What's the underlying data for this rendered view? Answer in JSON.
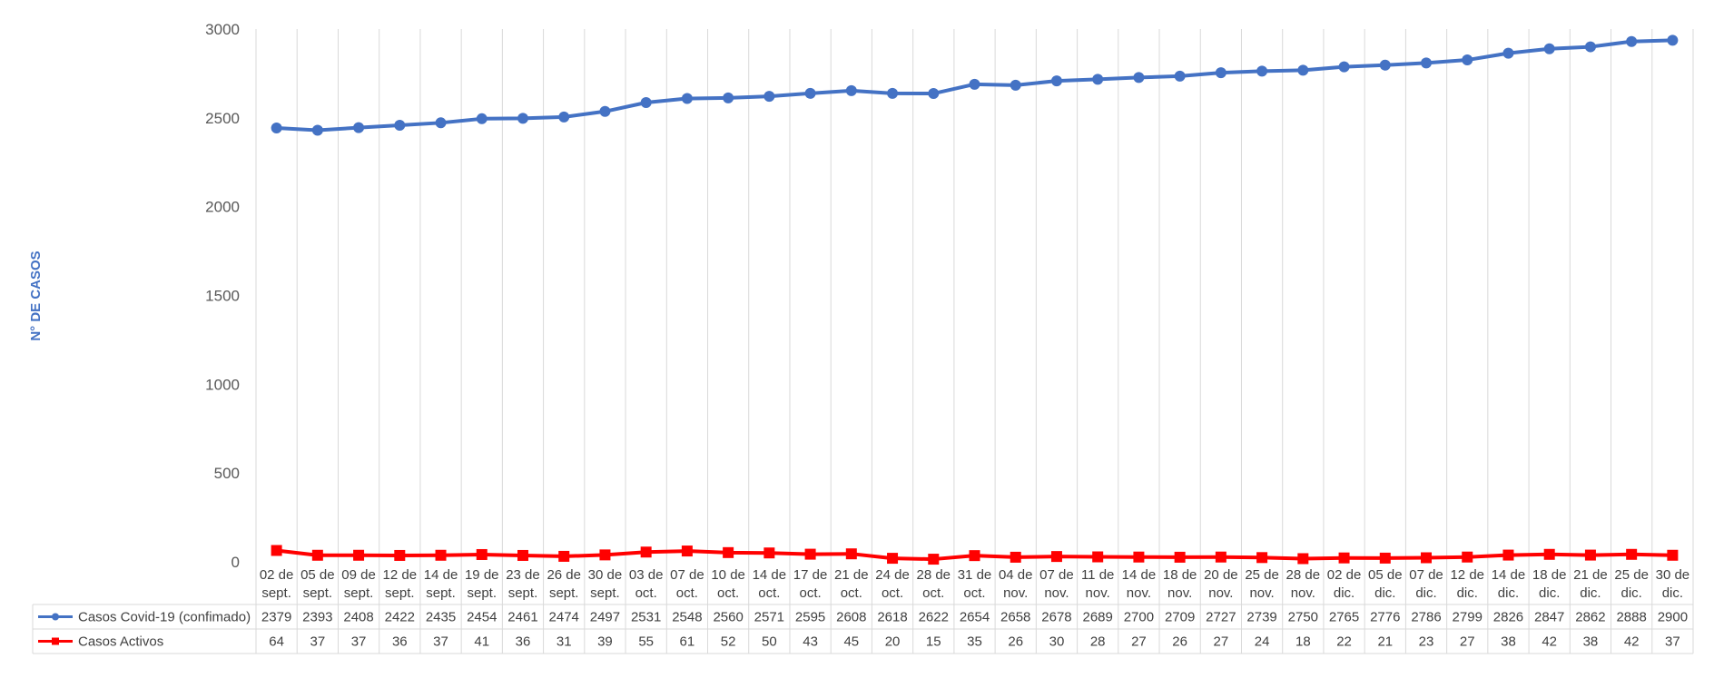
{
  "chart_data": {
    "type": "line",
    "title": "",
    "xlabel": "",
    "ylabel": "N° DE CASOS",
    "ylim": [
      0,
      3000
    ],
    "yticks": [
      0,
      500,
      1000,
      1500,
      2000,
      2500,
      3000
    ],
    "grid": "vertical",
    "legend": "data-table-left",
    "categories": [
      [
        "02 de",
        "sept."
      ],
      [
        "05 de",
        "sept."
      ],
      [
        "09 de",
        "sept."
      ],
      [
        "12 de",
        "sept."
      ],
      [
        "14 de",
        "sept."
      ],
      [
        "19 de",
        "sept."
      ],
      [
        "23 de",
        "sept."
      ],
      [
        "26 de",
        "sept."
      ],
      [
        "30 de",
        "sept."
      ],
      [
        "03 de",
        "oct."
      ],
      [
        "07 de",
        "oct."
      ],
      [
        "10 de",
        "oct."
      ],
      [
        "14 de",
        "oct."
      ],
      [
        "17 de",
        "oct."
      ],
      [
        "21 de",
        "oct."
      ],
      [
        "24 de",
        "oct."
      ],
      [
        "28 de",
        "oct."
      ],
      [
        "31 de",
        "oct."
      ],
      [
        "04 de",
        "nov."
      ],
      [
        "07 de",
        "nov."
      ],
      [
        "11 de",
        "nov."
      ],
      [
        "14 de",
        "nov."
      ],
      [
        "18 de",
        "nov."
      ],
      [
        "20 de",
        "nov."
      ],
      [
        "25 de",
        "nov."
      ],
      [
        "28 de",
        "nov."
      ],
      [
        "02 de",
        "dic."
      ],
      [
        "05 de",
        "dic."
      ],
      [
        "07 de",
        "dic."
      ],
      [
        "12 de",
        "dic."
      ],
      [
        "14 de",
        "dic."
      ],
      [
        "18 de",
        "dic."
      ],
      [
        "21 de",
        "dic."
      ],
      [
        "25 de",
        "dic."
      ],
      [
        "30 de",
        "dic."
      ]
    ],
    "series": [
      {
        "name": "Casos Covid-19 (confimado)",
        "color": "#4472C4",
        "marker": "circle",
        "values": [
          2379,
          2393,
          2408,
          2422,
          2435,
          2454,
          2461,
          2474,
          2497,
          2531,
          2548,
          2560,
          2571,
          2595,
          2608,
          2618,
          2622,
          2654,
          2658,
          2678,
          2689,
          2700,
          2709,
          2727,
          2739,
          2750,
          2765,
          2776,
          2786,
          2799,
          2826,
          2847,
          2862,
          2888,
          2900
        ],
        "plotted": [
          2443,
          2430,
          2445,
          2458,
          2472,
          2495,
          2497,
          2505,
          2536,
          2586,
          2609,
          2612,
          2621,
          2638,
          2653,
          2638,
          2637,
          2689,
          2684,
          2708,
          2717,
          2727,
          2735,
          2754,
          2763,
          2768,
          2787,
          2797,
          2809,
          2826,
          2864,
          2889,
          2900,
          2930,
          2937
        ]
      },
      {
        "name": "Casos Activos",
        "color": "#FF0000",
        "marker": "square",
        "values": [
          64,
          37,
          37,
          36,
          37,
          41,
          36,
          31,
          39,
          55,
          61,
          52,
          50,
          43,
          45,
          20,
          15,
          35,
          26,
          30,
          28,
          27,
          26,
          27,
          24,
          18,
          22,
          21,
          23,
          27,
          38,
          42,
          38,
          42,
          37
        ]
      }
    ]
  }
}
